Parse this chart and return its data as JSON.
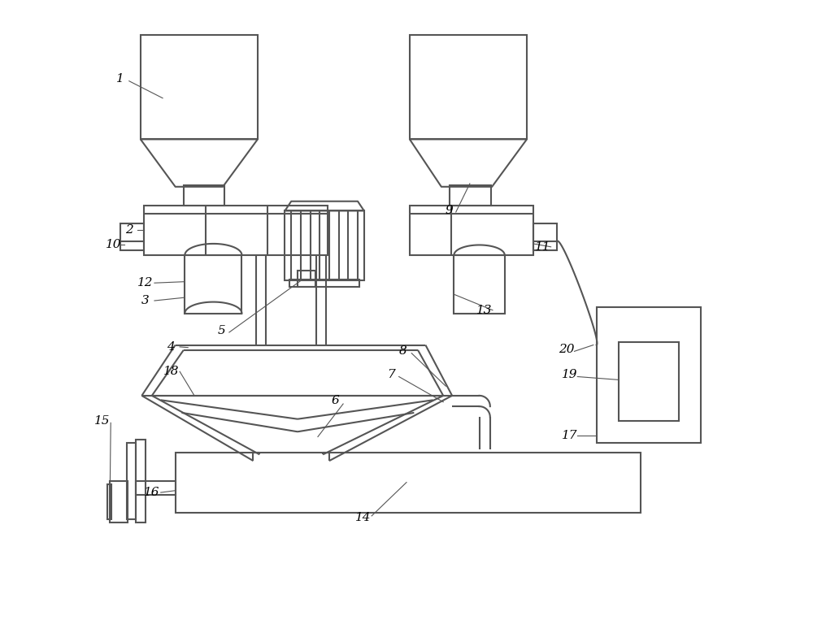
{
  "bg_color": "#ffffff",
  "line_color": "#555555",
  "lw": 1.5,
  "thin_lw": 0.8
}
